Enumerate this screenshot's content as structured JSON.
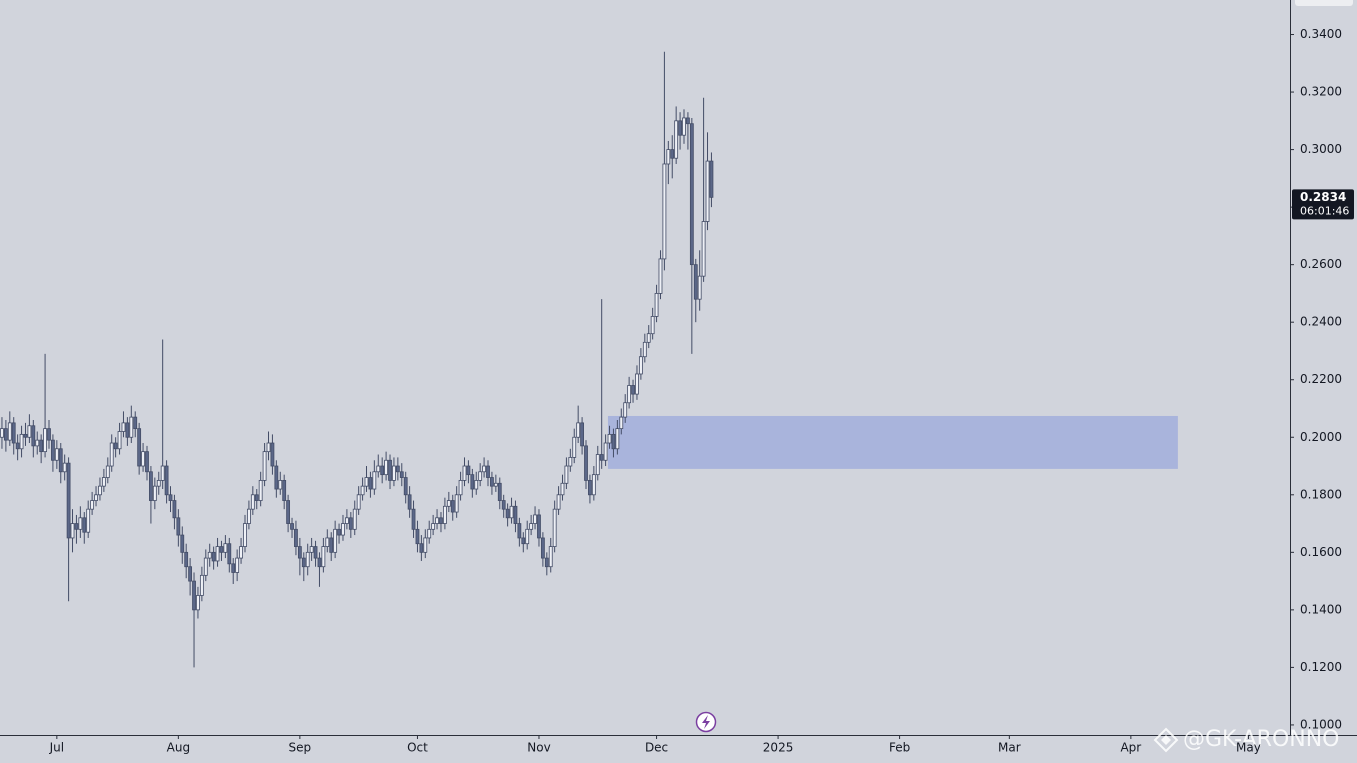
{
  "chart_data": {
    "type": "candlestick",
    "x": [
      0,
      1,
      2,
      3,
      4,
      5,
      6,
      7,
      8,
      9,
      10,
      11,
      12,
      13,
      14,
      15,
      16,
      17,
      18,
      19,
      20,
      21,
      22,
      23,
      24,
      25,
      26,
      27,
      28,
      29,
      30,
      31,
      32,
      33,
      34,
      35,
      36,
      37,
      38,
      39,
      40,
      41,
      42,
      43,
      44,
      45,
      46,
      47,
      48,
      49,
      50,
      51,
      52,
      53,
      54,
      55,
      56,
      57,
      58,
      59,
      60,
      61,
      62,
      63,
      64,
      65,
      66,
      67,
      68,
      69,
      70,
      71,
      72,
      73,
      74,
      75,
      76,
      77,
      78,
      79,
      80,
      81,
      82,
      83,
      84,
      85,
      86,
      87,
      88,
      89,
      90,
      91,
      92,
      93,
      94,
      95,
      96,
      97,
      98,
      99,
      100,
      101,
      102,
      103,
      104,
      105,
      106,
      107,
      108,
      109,
      110,
      111,
      112,
      113,
      114,
      115,
      116,
      117,
      118,
      119,
      120,
      121,
      122,
      123,
      124,
      125,
      126,
      127,
      128,
      129,
      130,
      131,
      132,
      133,
      134,
      135,
      136,
      137,
      138,
      139,
      140,
      141,
      142,
      143,
      144,
      145,
      146,
      147,
      148,
      149,
      150,
      151,
      152,
      153,
      154,
      155,
      156,
      157,
      158,
      159,
      160,
      161,
      162,
      163,
      164,
      165,
      166,
      167,
      168,
      169,
      170,
      171,
      172,
      173,
      174,
      175,
      176,
      177,
      178,
      179,
      180,
      181
    ],
    "ohlc": [
      [
        0.2,
        0.207,
        0.196,
        0.203
      ],
      [
        0.203,
        0.206,
        0.195,
        0.199
      ],
      [
        0.199,
        0.209,
        0.197,
        0.205
      ],
      [
        0.205,
        0.207,
        0.194,
        0.198
      ],
      [
        0.198,
        0.201,
        0.192,
        0.196
      ],
      [
        0.196,
        0.204,
        0.193,
        0.201
      ],
      [
        0.201,
        0.205,
        0.197,
        0.2
      ],
      [
        0.2,
        0.208,
        0.198,
        0.204
      ],
      [
        0.204,
        0.206,
        0.193,
        0.197
      ],
      [
        0.197,
        0.202,
        0.194,
        0.199
      ],
      [
        0.199,
        0.201,
        0.191,
        0.195
      ],
      [
        0.195,
        0.229,
        0.193,
        0.203
      ],
      [
        0.203,
        0.206,
        0.196,
        0.199
      ],
      [
        0.199,
        0.201,
        0.188,
        0.192
      ],
      [
        0.192,
        0.199,
        0.189,
        0.196
      ],
      [
        0.196,
        0.198,
        0.184,
        0.188
      ],
      [
        0.188,
        0.194,
        0.185,
        0.191
      ],
      [
        0.191,
        0.193,
        0.143,
        0.165
      ],
      [
        0.165,
        0.175,
        0.16,
        0.17
      ],
      [
        0.17,
        0.173,
        0.163,
        0.168
      ],
      [
        0.168,
        0.176,
        0.165,
        0.172
      ],
      [
        0.172,
        0.174,
        0.163,
        0.167
      ],
      [
        0.167,
        0.178,
        0.165,
        0.175
      ],
      [
        0.175,
        0.181,
        0.173,
        0.178
      ],
      [
        0.178,
        0.183,
        0.176,
        0.18
      ],
      [
        0.18,
        0.186,
        0.178,
        0.183
      ],
      [
        0.183,
        0.189,
        0.181,
        0.186
      ],
      [
        0.186,
        0.193,
        0.184,
        0.19
      ],
      [
        0.19,
        0.201,
        0.188,
        0.198
      ],
      [
        0.198,
        0.2,
        0.193,
        0.196
      ],
      [
        0.196,
        0.205,
        0.194,
        0.202
      ],
      [
        0.202,
        0.209,
        0.2,
        0.205
      ],
      [
        0.205,
        0.207,
        0.197,
        0.2
      ],
      [
        0.2,
        0.211,
        0.198,
        0.207
      ],
      [
        0.207,
        0.209,
        0.2,
        0.203
      ],
      [
        0.203,
        0.205,
        0.187,
        0.19
      ],
      [
        0.19,
        0.198,
        0.188,
        0.195
      ],
      [
        0.195,
        0.197,
        0.185,
        0.188
      ],
      [
        0.188,
        0.19,
        0.17,
        0.178
      ],
      [
        0.178,
        0.186,
        0.175,
        0.183
      ],
      [
        0.183,
        0.188,
        0.18,
        0.185
      ],
      [
        0.185,
        0.234,
        0.182,
        0.19
      ],
      [
        0.19,
        0.192,
        0.177,
        0.18
      ],
      [
        0.18,
        0.183,
        0.174,
        0.178
      ],
      [
        0.178,
        0.18,
        0.168,
        0.172
      ],
      [
        0.172,
        0.175,
        0.162,
        0.166
      ],
      [
        0.166,
        0.169,
        0.156,
        0.16
      ],
      [
        0.16,
        0.163,
        0.151,
        0.155
      ],
      [
        0.155,
        0.158,
        0.145,
        0.15
      ],
      [
        0.15,
        0.153,
        0.12,
        0.14
      ],
      [
        0.14,
        0.148,
        0.137,
        0.145
      ],
      [
        0.145,
        0.155,
        0.143,
        0.152
      ],
      [
        0.152,
        0.161,
        0.15,
        0.158
      ],
      [
        0.158,
        0.163,
        0.155,
        0.16
      ],
      [
        0.16,
        0.162,
        0.154,
        0.157
      ],
      [
        0.157,
        0.165,
        0.155,
        0.162
      ],
      [
        0.162,
        0.164,
        0.157,
        0.16
      ],
      [
        0.16,
        0.166,
        0.158,
        0.163
      ],
      [
        0.163,
        0.165,
        0.153,
        0.156
      ],
      [
        0.156,
        0.158,
        0.149,
        0.153
      ],
      [
        0.153,
        0.161,
        0.15,
        0.158
      ],
      [
        0.158,
        0.165,
        0.156,
        0.162
      ],
      [
        0.162,
        0.173,
        0.16,
        0.17
      ],
      [
        0.17,
        0.178,
        0.168,
        0.175
      ],
      [
        0.175,
        0.183,
        0.173,
        0.18
      ],
      [
        0.18,
        0.182,
        0.175,
        0.178
      ],
      [
        0.178,
        0.188,
        0.176,
        0.185
      ],
      [
        0.185,
        0.198,
        0.183,
        0.195
      ],
      [
        0.195,
        0.202,
        0.192,
        0.198
      ],
      [
        0.198,
        0.201,
        0.187,
        0.19
      ],
      [
        0.19,
        0.192,
        0.179,
        0.182
      ],
      [
        0.182,
        0.188,
        0.18,
        0.185
      ],
      [
        0.185,
        0.187,
        0.175,
        0.178
      ],
      [
        0.178,
        0.18,
        0.167,
        0.17
      ],
      [
        0.17,
        0.172,
        0.165,
        0.168
      ],
      [
        0.168,
        0.171,
        0.159,
        0.162
      ],
      [
        0.162,
        0.165,
        0.152,
        0.158
      ],
      [
        0.158,
        0.16,
        0.15,
        0.155
      ],
      [
        0.155,
        0.163,
        0.152,
        0.16
      ],
      [
        0.16,
        0.165,
        0.157,
        0.162
      ],
      [
        0.162,
        0.164,
        0.155,
        0.158
      ],
      [
        0.158,
        0.16,
        0.148,
        0.155
      ],
      [
        0.155,
        0.165,
        0.153,
        0.162
      ],
      [
        0.162,
        0.168,
        0.16,
        0.165
      ],
      [
        0.165,
        0.167,
        0.157,
        0.16
      ],
      [
        0.16,
        0.171,
        0.158,
        0.168
      ],
      [
        0.168,
        0.17,
        0.163,
        0.166
      ],
      [
        0.166,
        0.173,
        0.164,
        0.17
      ],
      [
        0.17,
        0.175,
        0.168,
        0.172
      ],
      [
        0.172,
        0.174,
        0.165,
        0.168
      ],
      [
        0.168,
        0.178,
        0.166,
        0.175
      ],
      [
        0.175,
        0.183,
        0.173,
        0.18
      ],
      [
        0.18,
        0.186,
        0.178,
        0.183
      ],
      [
        0.183,
        0.19,
        0.181,
        0.186
      ],
      [
        0.186,
        0.188,
        0.179,
        0.182
      ],
      [
        0.182,
        0.192,
        0.18,
        0.188
      ],
      [
        0.188,
        0.194,
        0.186,
        0.19
      ],
      [
        0.19,
        0.193,
        0.184,
        0.187
      ],
      [
        0.187,
        0.195,
        0.185,
        0.192
      ],
      [
        0.192,
        0.194,
        0.182,
        0.185
      ],
      [
        0.185,
        0.193,
        0.183,
        0.19
      ],
      [
        0.19,
        0.193,
        0.185,
        0.188
      ],
      [
        0.188,
        0.191,
        0.183,
        0.186
      ],
      [
        0.186,
        0.188,
        0.177,
        0.18
      ],
      [
        0.18,
        0.183,
        0.172,
        0.175
      ],
      [
        0.175,
        0.178,
        0.165,
        0.168
      ],
      [
        0.168,
        0.171,
        0.16,
        0.163
      ],
      [
        0.163,
        0.166,
        0.157,
        0.16
      ],
      [
        0.16,
        0.168,
        0.158,
        0.165
      ],
      [
        0.165,
        0.171,
        0.163,
        0.168
      ],
      [
        0.168,
        0.173,
        0.166,
        0.17
      ],
      [
        0.17,
        0.175,
        0.168,
        0.172
      ],
      [
        0.172,
        0.174,
        0.167,
        0.17
      ],
      [
        0.17,
        0.179,
        0.168,
        0.176
      ],
      [
        0.176,
        0.181,
        0.174,
        0.178
      ],
      [
        0.178,
        0.18,
        0.171,
        0.174
      ],
      [
        0.174,
        0.183,
        0.172,
        0.18
      ],
      [
        0.18,
        0.188,
        0.178,
        0.185
      ],
      [
        0.185,
        0.193,
        0.183,
        0.19
      ],
      [
        0.19,
        0.192,
        0.184,
        0.187
      ],
      [
        0.187,
        0.189,
        0.179,
        0.182
      ],
      [
        0.182,
        0.188,
        0.18,
        0.185
      ],
      [
        0.185,
        0.191,
        0.183,
        0.188
      ],
      [
        0.188,
        0.193,
        0.186,
        0.19
      ],
      [
        0.19,
        0.192,
        0.183,
        0.186
      ],
      [
        0.186,
        0.188,
        0.18,
        0.183
      ],
      [
        0.183,
        0.187,
        0.181,
        0.184
      ],
      [
        0.184,
        0.186,
        0.175,
        0.178
      ],
      [
        0.178,
        0.18,
        0.172,
        0.175
      ],
      [
        0.175,
        0.177,
        0.169,
        0.172
      ],
      [
        0.172,
        0.179,
        0.17,
        0.176
      ],
      [
        0.176,
        0.178,
        0.167,
        0.17
      ],
      [
        0.17,
        0.172,
        0.162,
        0.165
      ],
      [
        0.165,
        0.167,
        0.16,
        0.163
      ],
      [
        0.163,
        0.171,
        0.161,
        0.168
      ],
      [
        0.168,
        0.173,
        0.166,
        0.17
      ],
      [
        0.17,
        0.176,
        0.168,
        0.173
      ],
      [
        0.173,
        0.175,
        0.162,
        0.165
      ],
      [
        0.165,
        0.167,
        0.155,
        0.158
      ],
      [
        0.158,
        0.16,
        0.152,
        0.155
      ],
      [
        0.155,
        0.165,
        0.153,
        0.162
      ],
      [
        0.162,
        0.178,
        0.16,
        0.175
      ],
      [
        0.175,
        0.183,
        0.173,
        0.18
      ],
      [
        0.18,
        0.187,
        0.178,
        0.184
      ],
      [
        0.184,
        0.193,
        0.182,
        0.19
      ],
      [
        0.19,
        0.196,
        0.188,
        0.193
      ],
      [
        0.193,
        0.203,
        0.191,
        0.2
      ],
      [
        0.2,
        0.211,
        0.198,
        0.205
      ],
      [
        0.205,
        0.207,
        0.194,
        0.197
      ],
      [
        0.197,
        0.199,
        0.182,
        0.185
      ],
      [
        0.185,
        0.187,
        0.177,
        0.18
      ],
      [
        0.18,
        0.19,
        0.178,
        0.187
      ],
      [
        0.187,
        0.197,
        0.185,
        0.194
      ],
      [
        0.194,
        0.248,
        0.189,
        0.192
      ],
      [
        0.192,
        0.201,
        0.19,
        0.198
      ],
      [
        0.198,
        0.204,
        0.196,
        0.201
      ],
      [
        0.201,
        0.203,
        0.193,
        0.196
      ],
      [
        0.196,
        0.206,
        0.194,
        0.203
      ],
      [
        0.203,
        0.21,
        0.201,
        0.207
      ],
      [
        0.207,
        0.215,
        0.205,
        0.212
      ],
      [
        0.212,
        0.221,
        0.21,
        0.218
      ],
      [
        0.218,
        0.22,
        0.212,
        0.215
      ],
      [
        0.215,
        0.225,
        0.213,
        0.222
      ],
      [
        0.222,
        0.231,
        0.22,
        0.228
      ],
      [
        0.228,
        0.236,
        0.226,
        0.233
      ],
      [
        0.233,
        0.239,
        0.231,
        0.236
      ],
      [
        0.236,
        0.245,
        0.234,
        0.242
      ],
      [
        0.242,
        0.253,
        0.24,
        0.25
      ],
      [
        0.25,
        0.265,
        0.248,
        0.262
      ],
      [
        0.262,
        0.334,
        0.258,
        0.295
      ],
      [
        0.295,
        0.303,
        0.288,
        0.3
      ],
      [
        0.3,
        0.305,
        0.29,
        0.297
      ],
      [
        0.297,
        0.315,
        0.295,
        0.31
      ],
      [
        0.31,
        0.313,
        0.3,
        0.305
      ],
      [
        0.305,
        0.314,
        0.302,
        0.311
      ],
      [
        0.311,
        0.313,
        0.3,
        0.309
      ],
      [
        0.309,
        0.311,
        0.229,
        0.26
      ],
      [
        0.26,
        0.262,
        0.24,
        0.248
      ],
      [
        0.248,
        0.265,
        0.244,
        0.256
      ],
      [
        0.256,
        0.318,
        0.254,
        0.275
      ],
      [
        0.275,
        0.306,
        0.272,
        0.296
      ],
      [
        0.296,
        0.299,
        0.28,
        0.2834
      ]
    ],
    "up_color": "#eef0f6",
    "down_color": "#5b6788",
    "wick_color": "#434c66",
    "xlim": [
      -0.5,
      328.6
    ],
    "xticks": [
      {
        "value": 14,
        "label": "Jul"
      },
      {
        "value": 45,
        "label": "Aug"
      },
      {
        "value": 76,
        "label": "Sep"
      },
      {
        "value": 106,
        "label": "Oct"
      },
      {
        "value": 137,
        "label": "Nov"
      },
      {
        "value": 167,
        "label": "Dec"
      },
      {
        "value": 198,
        "label": "2025"
      },
      {
        "value": 229,
        "label": "Feb"
      },
      {
        "value": 257,
        "label": "Mar"
      },
      {
        "value": 288,
        "label": "Apr"
      },
      {
        "value": 318,
        "label": "May"
      }
    ],
    "ylim": [
      0.0965,
      0.352
    ],
    "yticks": [
      {
        "value": 0.1,
        "label": "0.1000"
      },
      {
        "value": 0.12,
        "label": "0.1200"
      },
      {
        "value": 0.14,
        "label": "0.1400"
      },
      {
        "value": 0.16,
        "label": "0.1600"
      },
      {
        "value": 0.18,
        "label": "0.1800"
      },
      {
        "value": 0.2,
        "label": "0.2000"
      },
      {
        "value": 0.22,
        "label": "0.2200"
      },
      {
        "value": 0.24,
        "label": "0.2400"
      },
      {
        "value": 0.26,
        "label": "0.2600"
      },
      {
        "value": 0.28,
        "label": "0.2800"
      },
      {
        "value": 0.3,
        "label": "0.3000"
      },
      {
        "value": 0.32,
        "label": "0.3200"
      },
      {
        "value": 0.34,
        "label": "0.3400"
      }
    ],
    "zone": {
      "x": [
        154.6,
        300
      ],
      "y": [
        0.189,
        0.2074
      ],
      "color": "#a9b4dc"
    },
    "last_price": 0.2834,
    "countdown": "06:01:46",
    "watermark": "@GK-ARONNO"
  }
}
